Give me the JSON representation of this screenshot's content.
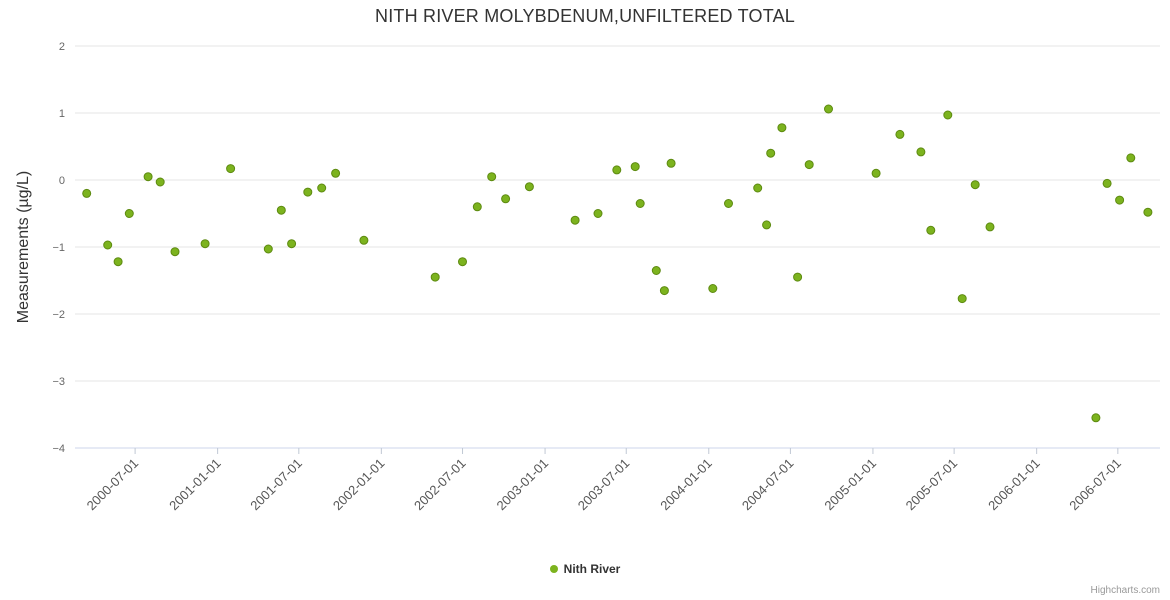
{
  "title": "NITH RIVER MOLYBDENUM,UNFILTERED TOTAL",
  "credits": "Highcharts.com",
  "legend": {
    "items": [
      {
        "label": "Nith River",
        "color": "#7cb31e"
      }
    ]
  },
  "chart_data": {
    "type": "scatter",
    "title": "NITH RIVER MOLYBDENUM,UNFILTERED TOTAL",
    "xlabel": "",
    "ylabel": "Measurements (µg/L)",
    "ylim": [
      -4,
      2
    ],
    "yticks": [
      2,
      1,
      0,
      -1,
      -2,
      -3,
      -4
    ],
    "xlim": [
      "2000-02-18",
      "2006-10-03"
    ],
    "xticks": [
      "2000-07-01",
      "2001-01-01",
      "2001-07-01",
      "2002-01-01",
      "2002-07-01",
      "2003-01-01",
      "2003-07-01",
      "2004-01-01",
      "2004-07-01",
      "2005-01-01",
      "2005-07-01",
      "2006-01-01",
      "2006-07-01"
    ],
    "grid": "horizontal-only",
    "legend_position": "bottom-center",
    "series": [
      {
        "name": "Nith River",
        "color": "#7cb31e",
        "points": [
          {
            "x": "2000-03-15",
            "y": -0.2
          },
          {
            "x": "2000-05-01",
            "y": -0.97
          },
          {
            "x": "2000-05-24",
            "y": -1.22
          },
          {
            "x": "2000-06-18",
            "y": -0.5
          },
          {
            "x": "2000-07-30",
            "y": 0.05
          },
          {
            "x": "2000-08-26",
            "y": -0.03
          },
          {
            "x": "2000-09-28",
            "y": -1.07
          },
          {
            "x": "2000-12-04",
            "y": -0.95
          },
          {
            "x": "2001-01-30",
            "y": 0.17
          },
          {
            "x": "2001-04-24",
            "y": -1.03
          },
          {
            "x": "2001-05-23",
            "y": -0.45
          },
          {
            "x": "2001-06-15",
            "y": -0.95
          },
          {
            "x": "2001-07-21",
            "y": -0.18
          },
          {
            "x": "2001-08-21",
            "y": -0.12
          },
          {
            "x": "2001-09-21",
            "y": 0.1
          },
          {
            "x": "2001-11-23",
            "y": -0.9
          },
          {
            "x": "2002-05-01",
            "y": -1.45
          },
          {
            "x": "2002-07-01",
            "y": -1.22
          },
          {
            "x": "2002-08-03",
            "y": -0.4
          },
          {
            "x": "2002-09-04",
            "y": 0.05
          },
          {
            "x": "2002-10-05",
            "y": -0.28
          },
          {
            "x": "2002-11-27",
            "y": -0.1
          },
          {
            "x": "2003-03-09",
            "y": -0.6
          },
          {
            "x": "2003-04-29",
            "y": -0.5
          },
          {
            "x": "2003-06-10",
            "y": 0.15
          },
          {
            "x": "2003-07-21",
            "y": 0.2
          },
          {
            "x": "2003-08-01",
            "y": -0.35
          },
          {
            "x": "2003-09-06",
            "y": -1.35
          },
          {
            "x": "2003-09-24",
            "y": -1.65
          },
          {
            "x": "2003-10-09",
            "y": 0.25
          },
          {
            "x": "2004-01-10",
            "y": -1.62
          },
          {
            "x": "2004-02-14",
            "y": -0.35
          },
          {
            "x": "2004-04-19",
            "y": -0.12
          },
          {
            "x": "2004-05-09",
            "y": -0.67
          },
          {
            "x": "2004-05-18",
            "y": 0.4
          },
          {
            "x": "2004-06-12",
            "y": 0.78
          },
          {
            "x": "2004-07-17",
            "y": -1.45
          },
          {
            "x": "2004-08-12",
            "y": 0.23
          },
          {
            "x": "2004-09-24",
            "y": 1.06
          },
          {
            "x": "2005-01-08",
            "y": 0.1
          },
          {
            "x": "2005-03-02",
            "y": 0.68
          },
          {
            "x": "2005-04-18",
            "y": 0.42
          },
          {
            "x": "2005-05-10",
            "y": -0.75
          },
          {
            "x": "2005-06-17",
            "y": 0.97
          },
          {
            "x": "2005-07-19",
            "y": -1.77
          },
          {
            "x": "2005-08-17",
            "y": -0.07
          },
          {
            "x": "2005-09-19",
            "y": -0.7
          },
          {
            "x": "2006-05-13",
            "y": -3.55
          },
          {
            "x": "2006-06-07",
            "y": -0.05
          },
          {
            "x": "2006-07-05",
            "y": -0.3
          },
          {
            "x": "2006-07-30",
            "y": 0.33
          },
          {
            "x": "2006-09-06",
            "y": -0.48
          }
        ]
      }
    ]
  }
}
